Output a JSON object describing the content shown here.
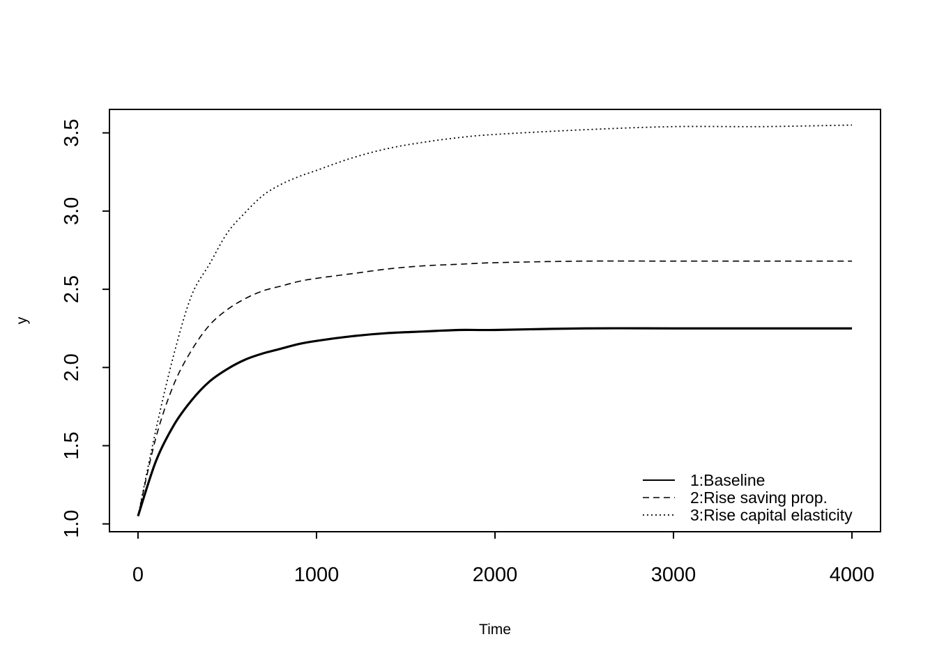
{
  "chart_data": {
    "type": "line",
    "title": "",
    "xlabel": "Time",
    "ylabel": "y",
    "xlim": [
      -160,
      4160
    ],
    "ylim": [
      0.95,
      3.65
    ],
    "xticks": [
      0,
      1000,
      2000,
      3000,
      4000
    ],
    "xtick_labels": [
      "0",
      "1000",
      "2000",
      "3000",
      "4000"
    ],
    "yticks": [
      1.0,
      1.5,
      2.0,
      2.5,
      3.0,
      3.5
    ],
    "ytick_labels": [
      "1.0",
      "1.5",
      "2.0",
      "2.5",
      "3.0",
      "3.5"
    ],
    "grid": false,
    "legend_position": "bottom-right",
    "x": [
      0,
      100,
      200,
      300,
      400,
      500,
      600,
      700,
      800,
      900,
      1000,
      1200,
      1400,
      1600,
      1800,
      2000,
      2500,
      3000,
      3500,
      4000
    ],
    "series": [
      {
        "name": "1:Baseline",
        "line_style": "solid",
        "line_weight": "thick",
        "values": [
          1.05,
          1.4,
          1.63,
          1.79,
          1.91,
          1.99,
          2.05,
          2.09,
          2.12,
          2.15,
          2.17,
          2.2,
          2.22,
          2.23,
          2.24,
          2.24,
          2.25,
          2.25,
          2.25,
          2.25
        ]
      },
      {
        "name": "2:Rise saving prop.",
        "line_style": "dashed",
        "line_weight": "thin",
        "values": [
          1.05,
          1.55,
          1.89,
          2.11,
          2.27,
          2.37,
          2.44,
          2.49,
          2.52,
          2.55,
          2.57,
          2.6,
          2.63,
          2.65,
          2.66,
          2.67,
          2.68,
          2.68,
          2.68,
          2.68
        ]
      },
      {
        "name": "3:Rise capital elasticity",
        "line_style": "dotted",
        "line_weight": "thin",
        "values": [
          1.05,
          1.6,
          2.08,
          2.46,
          2.66,
          2.86,
          2.99,
          3.1,
          3.17,
          3.22,
          3.26,
          3.34,
          3.4,
          3.44,
          3.47,
          3.49,
          3.52,
          3.54,
          3.54,
          3.55
        ]
      }
    ]
  }
}
